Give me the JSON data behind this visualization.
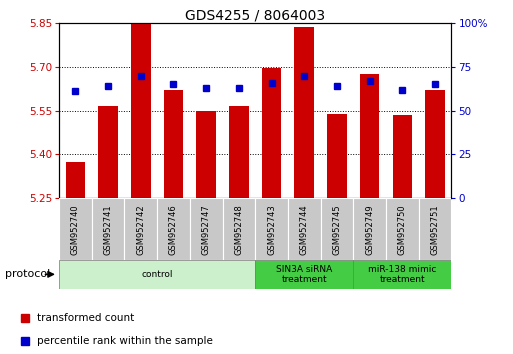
{
  "title": "GDS4255 / 8064003",
  "samples": [
    "GSM952740",
    "GSM952741",
    "GSM952742",
    "GSM952746",
    "GSM952747",
    "GSM952748",
    "GSM952743",
    "GSM952744",
    "GSM952745",
    "GSM952749",
    "GSM952750",
    "GSM952751"
  ],
  "transformed_count": [
    5.375,
    5.565,
    5.848,
    5.62,
    5.55,
    5.565,
    5.695,
    5.838,
    5.537,
    5.675,
    5.535,
    5.62
  ],
  "percentile_rank": [
    61,
    64,
    70,
    65,
    63,
    63,
    66,
    70,
    64,
    67,
    62,
    65
  ],
  "ylim_left": [
    5.25,
    5.85
  ],
  "ylim_right": [
    0,
    100
  ],
  "yticks_left": [
    5.25,
    5.4,
    5.55,
    5.7,
    5.85
  ],
  "yticks_right": [
    0,
    25,
    50,
    75,
    100
  ],
  "bar_color": "#cc0000",
  "dot_color": "#0000cc",
  "bar_bottom": 5.25,
  "protocols": [
    {
      "label": "control",
      "start": 0,
      "end": 6,
      "color": "#ccf0cc"
    },
    {
      "label": "SIN3A siRNA\ntreatment",
      "start": 6,
      "end": 9,
      "color": "#44cc44"
    },
    {
      "label": "miR-138 mimic\ntreatment",
      "start": 9,
      "end": 12,
      "color": "#44cc44"
    }
  ],
  "sample_bg_color": "#c8c8c8",
  "axis_color_left": "#cc0000",
  "axis_color_right": "#0000cc",
  "grid_ticks": [
    5.4,
    5.55,
    5.7
  ]
}
